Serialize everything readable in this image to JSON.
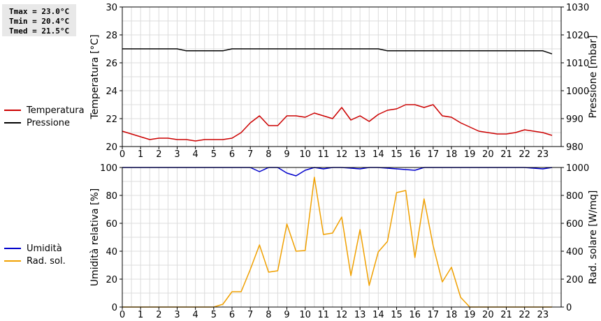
{
  "stats": {
    "tmax": "Tmax = 23.0°C",
    "tmin": "Tmin = 20.4°C",
    "tmed": "Tmed = 21.5°C"
  },
  "chart_data": [
    {
      "type": "line",
      "xlabel": "",
      "ylabel": "Temperatura [°C]",
      "y2label": "Pressione [mbar]",
      "xlim": [
        0,
        24
      ],
      "ylim": [
        20,
        30
      ],
      "y2lim": [
        980,
        1030
      ],
      "xticks": [
        0,
        1,
        2,
        3,
        4,
        5,
        6,
        7,
        8,
        9,
        10,
        11,
        12,
        13,
        14,
        15,
        16,
        17,
        18,
        19,
        20,
        21,
        22,
        23
      ],
      "yticks": [
        20,
        22,
        24,
        26,
        28,
        30
      ],
      "y2ticks": [
        980,
        990,
        1000,
        1010,
        1020,
        1030
      ],
      "grid": true,
      "legend_placement": "left",
      "series": [
        {
          "name": "Temperatura",
          "color": "#cc0000",
          "axis": "left",
          "x": [
            0,
            0.5,
            1,
            1.5,
            2,
            2.5,
            3,
            3.5,
            4,
            4.5,
            5,
            5.5,
            6,
            6.5,
            7,
            7.5,
            8,
            8.5,
            9,
            9.5,
            10,
            10.5,
            11,
            11.5,
            12,
            12.5,
            13,
            13.5,
            14,
            14.5,
            15,
            15.5,
            16,
            16.5,
            17,
            17.5,
            18,
            18.5,
            19,
            19.5,
            20,
            20.5,
            21,
            21.5,
            22,
            22.5,
            23,
            23.5
          ],
          "values": [
            21.1,
            20.9,
            20.7,
            20.5,
            20.6,
            20.6,
            20.5,
            20.5,
            20.4,
            20.5,
            20.5,
            20.5,
            20.6,
            21.0,
            21.7,
            22.2,
            21.5,
            21.5,
            22.2,
            22.2,
            22.1,
            22.4,
            22.2,
            22.0,
            22.8,
            21.9,
            22.2,
            21.8,
            22.3,
            22.6,
            22.7,
            23.0,
            23.0,
            22.8,
            23.0,
            22.2,
            22.1,
            21.7,
            21.4,
            21.1,
            21.0,
            20.9,
            20.9,
            21.0,
            21.2,
            21.1,
            21.0,
            20.8
          ]
        },
        {
          "name": "Pressione",
          "color": "#000000",
          "axis": "right",
          "x": [
            0,
            3,
            3.5,
            5.5,
            6,
            14,
            14.5,
            23,
            23.5
          ],
          "values": [
            1015.0,
            1015.0,
            1014.3,
            1014.3,
            1015.0,
            1015.0,
            1014.3,
            1014.3,
            1013.2
          ]
        }
      ]
    },
    {
      "type": "line",
      "xlabel": "",
      "ylabel": "Umidità relativa [%]",
      "y2label": "Rad. solare [W/mq]",
      "xlim": [
        0,
        24
      ],
      "ylim": [
        0,
        100
      ],
      "y2lim": [
        0,
        1000
      ],
      "xticks": [
        0,
        1,
        2,
        3,
        4,
        5,
        6,
        7,
        8,
        9,
        10,
        11,
        12,
        13,
        14,
        15,
        16,
        17,
        18,
        19,
        20,
        21,
        22,
        23
      ],
      "yticks": [
        0,
        20,
        40,
        60,
        80,
        100
      ],
      "y2ticks": [
        0,
        200,
        400,
        600,
        800,
        1000
      ],
      "grid": true,
      "legend_placement": "left",
      "series": [
        {
          "name": "Umidità",
          "color": "#0000cc",
          "axis": "left",
          "x": [
            0,
            7,
            7.5,
            8,
            8.5,
            9,
            9.5,
            10,
            10.5,
            11,
            11.5,
            12,
            13,
            13.5,
            14,
            15,
            16,
            16.5,
            17,
            22,
            23,
            23.5
          ],
          "values": [
            100,
            100,
            97,
            100,
            100,
            96,
            94,
            98,
            100,
            99,
            100,
            100,
            99,
            100,
            100,
            99,
            98,
            100,
            100,
            100,
            99,
            100
          ]
        },
        {
          "name": "Rad. sol.",
          "color": "#f0a000",
          "axis": "right",
          "x": [
            0,
            5,
            5.5,
            6,
            6.5,
            7,
            7.5,
            8,
            8.5,
            9,
            9.5,
            10,
            10.5,
            11,
            11.5,
            12,
            12.5,
            13,
            13.5,
            14,
            14.5,
            15,
            15.5,
            16,
            16.5,
            17,
            17.5,
            18,
            18.5,
            19,
            19.5,
            23.5
          ],
          "values": [
            0,
            0,
            20,
            110,
            110,
            270,
            445,
            250,
            260,
            595,
            400,
            405,
            930,
            520,
            530,
            645,
            225,
            555,
            155,
            395,
            470,
            820,
            835,
            355,
            775,
            440,
            180,
            285,
            70,
            0,
            0,
            0
          ]
        }
      ]
    }
  ]
}
